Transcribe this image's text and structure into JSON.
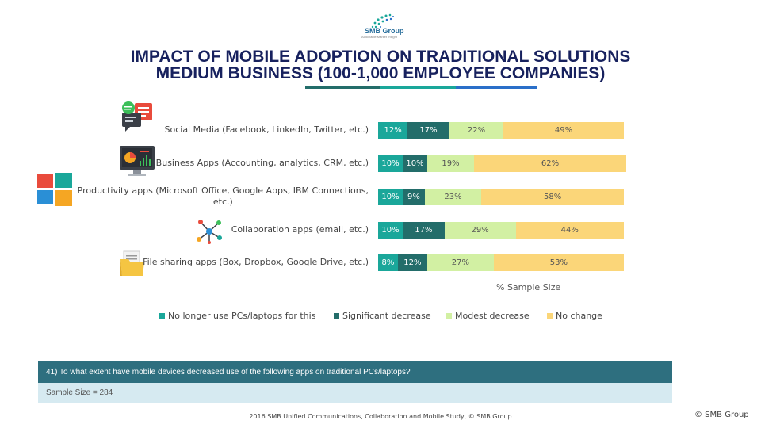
{
  "logo": {
    "text": "SMB Group",
    "tagline": "Actionable Market Insight"
  },
  "title_line1": "IMPACT OF MOBILE ADOPTION ON TRADITIONAL SOLUTIONS",
  "title_line2": "MEDIUM BUSINESS (100-1,000 EMPLOYEE COMPANIES)",
  "colors": {
    "s1": "#1aa79a",
    "s2": "#236d6a",
    "s3": "#d2f0a3",
    "s4": "#fbd679",
    "title": "#17215e"
  },
  "icons": [
    "chat-bubbles-icon",
    "monitor-dashboard-icon",
    "windows-logo-icon",
    "network-nodes-icon",
    "folder-document-icon"
  ],
  "chart_data": {
    "type": "bar",
    "orientation": "horizontal",
    "stacked": true,
    "categories": [
      "Social Media (Facebook, LinkedIn, Twitter, etc.)",
      "Business Apps (Accounting, analytics, CRM, etc.)",
      "Productivity apps (Microsoft Office, Google Apps, IBM Connections, etc.)",
      "Collaboration apps (email, etc.)",
      "File sharing apps (Box, Dropbox, Google Drive, etc.)"
    ],
    "category_lines": [
      [
        "Social Media (Facebook, LinkedIn, Twitter, etc.)"
      ],
      [
        "Business Apps (Accounting, analytics, CRM, etc.)"
      ],
      [
        "Productivity apps (Microsoft Office, Google Apps, IBM Connections,",
        "etc.)"
      ],
      [
        "Collaboration apps (email, etc.)"
      ],
      [
        "File sharing apps (Box, Dropbox, Google Drive, etc.)"
      ]
    ],
    "series": [
      {
        "name": "No longer use PCs/laptops for this",
        "values": [
          12,
          10,
          10,
          10,
          8
        ]
      },
      {
        "name": "Significant decrease",
        "values": [
          17,
          10,
          9,
          17,
          12
        ]
      },
      {
        "name": "Modest decrease",
        "values": [
          22,
          19,
          23,
          29,
          27
        ]
      },
      {
        "name": "No change",
        "values": [
          49,
          62,
          58,
          44,
          53
        ]
      }
    ],
    "value_suffix": "%",
    "xlabel": "% Sample Size",
    "legend_position": "bottom"
  },
  "question": "41) To  what extent have mobile devices decreased use of the following apps on traditional PCs/laptops?",
  "sample_size": "Sample Size = 284",
  "footer": "2016 SMB Unified Communications,  Collaboration  and Mobile Study, © SMB Group",
  "copyright": "© SMB Group"
}
